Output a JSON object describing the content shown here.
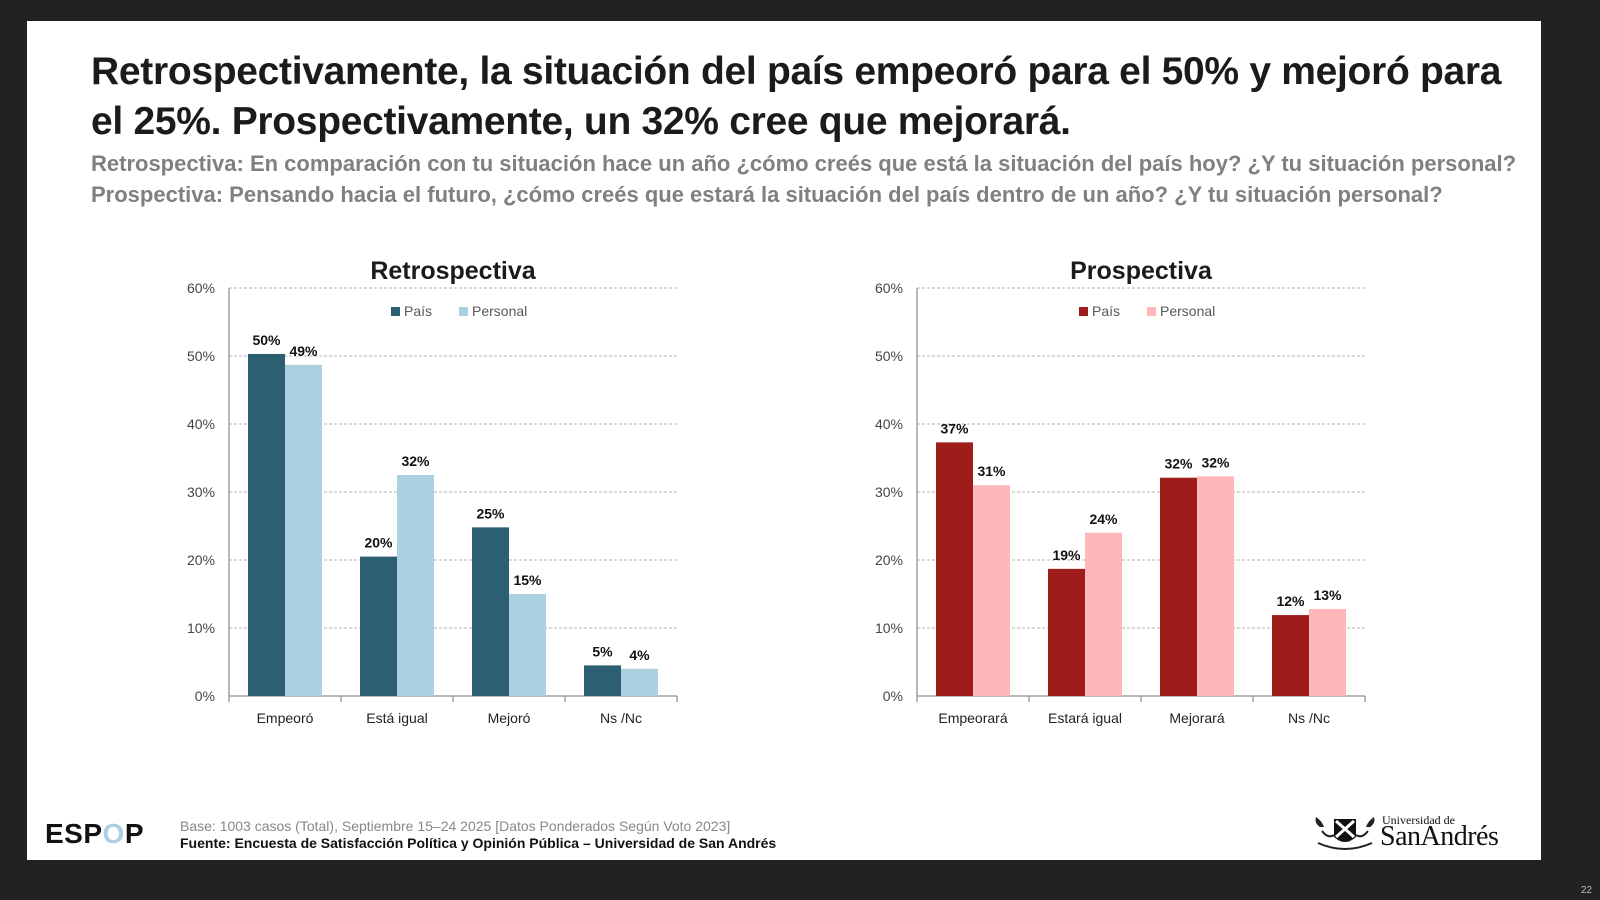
{
  "slide": {
    "title": "Retrospectivamente, la situación del país empeoró para el 50% y mejoró para el 25%. Prospectivamente, un 32% cree que mejorará.",
    "subtitle_lines": [
      "Retrospectiva: En comparación con tu situación hace un año ¿cómo creés que está la situación del país hoy? ¿Y tu situación personal?",
      "Prospectiva: Pensando hacia el futuro, ¿cómo creés que estará la situación del país dentro de un año? ¿Y tu situación personal?"
    ],
    "footer": {
      "logo_prefix": "ESP",
      "logo_o": "O",
      "logo_suffix": "P",
      "base": "Base: 1003 casos (Total), Septiembre 15–24 2025 [Datos Ponderados Según Voto 2023]",
      "source": "Fuente: Encuesta de Satisfacción Política y Opinión Pública – Universidad de San Andrés",
      "university_small": "Universidad de",
      "university_big": "SanAndrés"
    },
    "slide_number": "22"
  },
  "chart_data": [
    {
      "type": "bar",
      "title": "Retrospectiva",
      "categories": [
        "Empeoró",
        "Está igual",
        "Mejoró",
        "Ns /Nc"
      ],
      "series": [
        {
          "name": "País",
          "color": "#2d5f73",
          "values": [
            50,
            20,
            25,
            5
          ],
          "display_values": [
            50.3,
            20.5,
            24.8,
            4.5
          ]
        },
        {
          "name": "Personal",
          "color": "#a9d1e0",
          "values": [
            49,
            32,
            15,
            4
          ],
          "display_values": [
            48.7,
            32.5,
            15.0,
            4.0
          ]
        }
      ],
      "yticks": [
        "0%",
        "10%",
        "20%",
        "30%",
        "40%",
        "50%",
        "60%"
      ],
      "ylim": [
        0,
        60
      ],
      "xlabel": "",
      "ylabel": "",
      "grid": true,
      "legend": "top-center"
    },
    {
      "type": "bar",
      "title": "Prospectiva",
      "categories": [
        "Empeorará",
        "Estará igual",
        "Mejorará",
        "Ns /Nc"
      ],
      "series": [
        {
          "name": "País",
          "color": "#9e1c1a",
          "values": [
            37,
            19,
            32,
            12
          ],
          "display_values": [
            37.3,
            18.7,
            32.1,
            11.9
          ]
        },
        {
          "name": "Personal",
          "color": "#ffb7bc",
          "values": [
            31,
            24,
            32,
            13
          ],
          "display_values": [
            31.0,
            24.0,
            32.3,
            12.8
          ]
        }
      ],
      "yticks": [
        "0%",
        "10%",
        "20%",
        "30%",
        "40%",
        "50%",
        "60%"
      ],
      "ylim": [
        0,
        60
      ],
      "xlabel": "",
      "ylabel": "",
      "grid": true,
      "legend": "top-center"
    }
  ]
}
